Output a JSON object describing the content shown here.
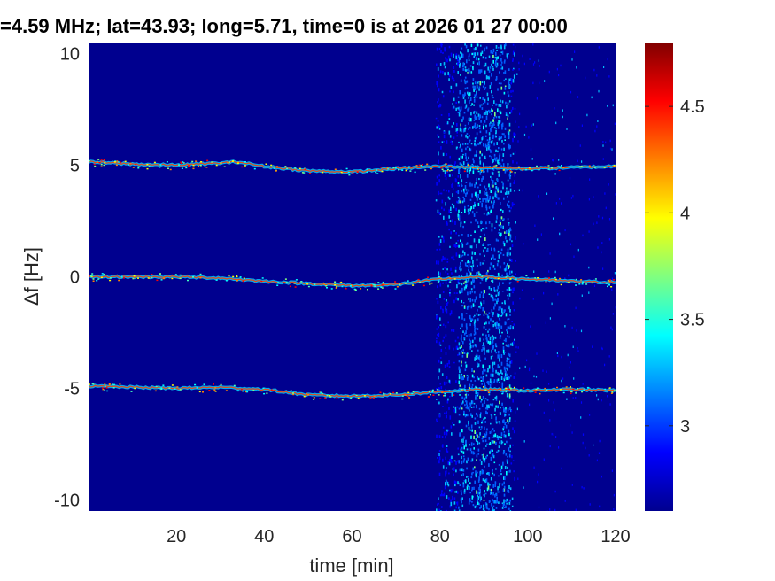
{
  "chart_data": {
    "type": "heatmap",
    "title": "=4.59 MHz;  lat=43.93; long=5.71, time=0 is at 2026 01 27 00:00",
    "xlabel": "time [min]",
    "ylabel": "Δf [Hz]",
    "xlim": [
      0,
      120
    ],
    "ylim": [
      -10.5,
      10.5
    ],
    "x_ticks": [
      20,
      40,
      60,
      80,
      100,
      120
    ],
    "x_tick_labels": [
      "20",
      "40",
      "60",
      "80",
      "100",
      "120"
    ],
    "y_ticks": [
      10,
      5,
      0,
      -5,
      -10
    ],
    "y_tick_labels": [
      "10",
      "5",
      "0",
      "-5",
      "-10"
    ],
    "colorbar": {
      "colormap": "jet",
      "range": [
        2.6,
        4.8
      ],
      "ticks": [
        4.5,
        4,
        3.5,
        3
      ],
      "tick_labels": [
        "4.5",
        "4",
        "3.5",
        "3"
      ]
    },
    "traces": [
      {
        "x": [
          0,
          10,
          20,
          30,
          34,
          40,
          50,
          60,
          70,
          80,
          90,
          100,
          110,
          120
        ],
        "y": [
          5.15,
          5.05,
          5.0,
          5.1,
          5.15,
          4.95,
          4.75,
          4.7,
          4.85,
          4.95,
          4.9,
          4.85,
          4.9,
          4.95
        ]
      },
      {
        "x": [
          0,
          10,
          20,
          30,
          40,
          50,
          60,
          70,
          80,
          90,
          100,
          110,
          120
        ],
        "y": [
          0.0,
          0.0,
          0.0,
          -0.05,
          -0.2,
          -0.3,
          -0.4,
          -0.35,
          -0.1,
          0.0,
          -0.1,
          -0.2,
          -0.25
        ]
      },
      {
        "x": [
          0,
          10,
          20,
          30,
          40,
          50,
          60,
          70,
          80,
          90,
          100,
          110,
          120
        ],
        "y": [
          -4.9,
          -4.95,
          -5.0,
          -4.95,
          -5.05,
          -5.3,
          -5.35,
          -5.3,
          -5.15,
          -5.05,
          -5.1,
          -5.05,
          -5.1
        ]
      }
    ],
    "noise_band": {
      "x_range": [
        79,
        97
      ],
      "peak_x_range": [
        84,
        96
      ]
    },
    "background_color": "#00008f"
  }
}
